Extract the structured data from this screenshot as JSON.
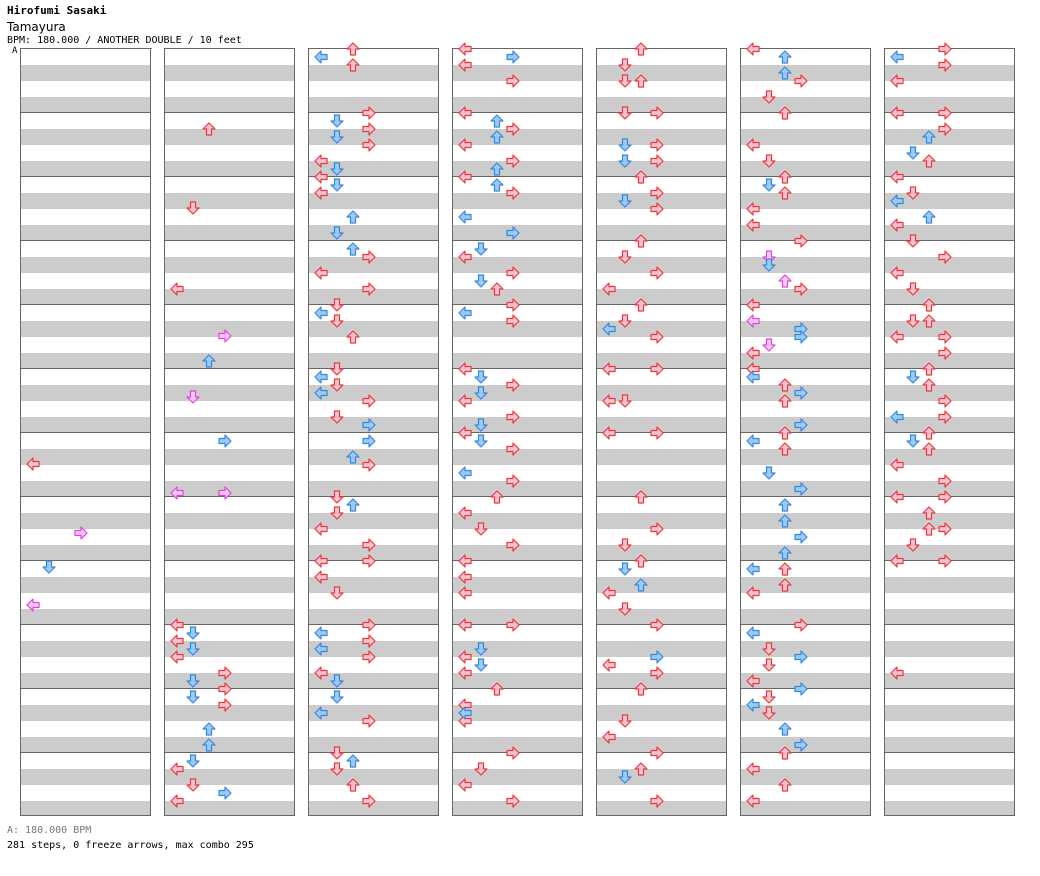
{
  "header": {
    "artist": "Hirofumi Sasaki",
    "song": "Tamayura",
    "meta": "BPM: 180.000 / ANOTHER DOUBLE / 10 feet",
    "bpm_marker": "A"
  },
  "footer": {
    "bpm_legend": "A: 180.000 BPM",
    "stats": "281 steps, 0 freeze arrows, max combo 295"
  },
  "colors": {
    "red": "#ee3344",
    "red_fill": "#ffc8cc",
    "blue": "#3388dd",
    "blue_fill": "#9ec9f5",
    "pink": "#dd44dd",
    "pink_fill": "#ffc8ff"
  },
  "chart": {
    "columns": 7,
    "measures_per_column": 12,
    "notes": [
      [
        1,
        464,
        "l",
        "r"
      ],
      [
        1,
        567,
        "d",
        "b"
      ],
      [
        1,
        605,
        "l",
        "p"
      ],
      [
        1,
        533,
        "r",
        "p"
      ],
      [
        2,
        129,
        "u",
        "r"
      ],
      [
        2,
        208,
        "d",
        "r"
      ],
      [
        2,
        289,
        "l",
        "r"
      ],
      [
        2,
        336,
        "r",
        "p"
      ],
      [
        2,
        361,
        "u",
        "b"
      ],
      [
        2,
        397,
        "d",
        "p"
      ],
      [
        2,
        441,
        "r",
        "b"
      ],
      [
        2,
        493,
        "l",
        "p"
      ],
      [
        2,
        493,
        "r",
        "p"
      ],
      [
        2,
        625,
        "l",
        "r"
      ],
      [
        2,
        641,
        "l",
        "r"
      ],
      [
        2,
        657,
        "l",
        "r"
      ],
      [
        2,
        633,
        "d",
        "b"
      ],
      [
        2,
        649,
        "d",
        "b"
      ],
      [
        2,
        673,
        "r",
        "r"
      ],
      [
        2,
        689,
        "r",
        "r"
      ],
      [
        2,
        705,
        "r",
        "r"
      ],
      [
        2,
        681,
        "d",
        "b"
      ],
      [
        2,
        697,
        "d",
        "b"
      ],
      [
        2,
        729,
        "u",
        "b"
      ],
      [
        2,
        745,
        "u",
        "b"
      ],
      [
        2,
        761,
        "d",
        "b"
      ],
      [
        2,
        769,
        "l",
        "r"
      ],
      [
        2,
        785,
        "d",
        "r"
      ],
      [
        2,
        793,
        "r",
        "b"
      ],
      [
        2,
        801,
        "l",
        "r"
      ],
      [
        3,
        49,
        "u",
        "r"
      ],
      [
        3,
        65,
        "u",
        "r"
      ],
      [
        3,
        57,
        "l",
        "b"
      ],
      [
        3,
        113,
        "r",
        "r"
      ],
      [
        3,
        129,
        "r",
        "r"
      ],
      [
        3,
        145,
        "r",
        "r"
      ],
      [
        3,
        121,
        "d",
        "b"
      ],
      [
        3,
        137,
        "d",
        "b"
      ],
      [
        3,
        161,
        "l",
        "r"
      ],
      [
        3,
        177,
        "l",
        "r"
      ],
      [
        3,
        193,
        "l",
        "r"
      ],
      [
        3,
        169,
        "d",
        "b"
      ],
      [
        3,
        185,
        "d",
        "b"
      ],
      [
        3,
        217,
        "u",
        "b"
      ],
      [
        3,
        233,
        "d",
        "b"
      ],
      [
        3,
        249,
        "u",
        "b"
      ],
      [
        3,
        257,
        "r",
        "r"
      ],
      [
        3,
        273,
        "l",
        "r"
      ],
      [
        3,
        289,
        "r",
        "r"
      ],
      [
        3,
        313,
        "l",
        "b"
      ],
      [
        3,
        305,
        "d",
        "r"
      ],
      [
        3,
        321,
        "d",
        "r"
      ],
      [
        3,
        337,
        "u",
        "r"
      ],
      [
        3,
        369,
        "d",
        "r"
      ],
      [
        3,
        377,
        "l",
        "b"
      ],
      [
        3,
        393,
        "l",
        "b"
      ],
      [
        3,
        385,
        "d",
        "r"
      ],
      [
        3,
        401,
        "r",
        "r"
      ],
      [
        3,
        417,
        "d",
        "r"
      ],
      [
        3,
        425,
        "r",
        "b"
      ],
      [
        3,
        441,
        "r",
        "b"
      ],
      [
        3,
        457,
        "u",
        "b"
      ],
      [
        3,
        465,
        "r",
        "r"
      ],
      [
        3,
        497,
        "d",
        "r"
      ],
      [
        3,
        513,
        "d",
        "r"
      ],
      [
        3,
        505,
        "u",
        "b"
      ],
      [
        3,
        529,
        "l",
        "r"
      ],
      [
        3,
        545,
        "r",
        "r"
      ],
      [
        3,
        561,
        "r",
        "r"
      ],
      [
        3,
        577,
        "l",
        "r"
      ],
      [
        3,
        561,
        "l",
        "r"
      ],
      [
        3,
        593,
        "d",
        "r"
      ],
      [
        3,
        625,
        "r",
        "r"
      ],
      [
        3,
        641,
        "r",
        "r"
      ],
      [
        3,
        657,
        "r",
        "r"
      ],
      [
        3,
        633,
        "l",
        "b"
      ],
      [
        3,
        649,
        "l",
        "b"
      ],
      [
        3,
        673,
        "l",
        "r"
      ],
      [
        3,
        681,
        "d",
        "b"
      ],
      [
        3,
        697,
        "d",
        "b"
      ],
      [
        3,
        713,
        "l",
        "b"
      ],
      [
        3,
        721,
        "r",
        "r"
      ],
      [
        3,
        753,
        "d",
        "r"
      ],
      [
        3,
        769,
        "d",
        "r"
      ],
      [
        3,
        761,
        "u",
        "b"
      ],
      [
        3,
        785,
        "u",
        "r"
      ],
      [
        3,
        801,
        "r",
        "r"
      ],
      [
        4,
        49,
        "l",
        "r"
      ],
      [
        4,
        65,
        "l",
        "r"
      ],
      [
        4,
        57,
        "r",
        "b"
      ],
      [
        4,
        81,
        "r",
        "r"
      ],
      [
        4,
        113,
        "l",
        "r"
      ],
      [
        4,
        121,
        "u",
        "b"
      ],
      [
        4,
        137,
        "u",
        "b"
      ],
      [
        4,
        129,
        "r",
        "r"
      ],
      [
        4,
        145,
        "l",
        "r"
      ],
      [
        4,
        161,
        "r",
        "r"
      ],
      [
        4,
        169,
        "u",
        "b"
      ],
      [
        4,
        185,
        "u",
        "b"
      ],
      [
        4,
        177,
        "l",
        "r"
      ],
      [
        4,
        193,
        "r",
        "r"
      ],
      [
        4,
        217,
        "l",
        "b"
      ],
      [
        4,
        233,
        "r",
        "b"
      ],
      [
        4,
        249,
        "d",
        "b"
      ],
      [
        4,
        257,
        "l",
        "r"
      ],
      [
        4,
        273,
        "r",
        "r"
      ],
      [
        4,
        281,
        "d",
        "b"
      ],
      [
        4,
        289,
        "u",
        "r"
      ],
      [
        4,
        305,
        "r",
        "r"
      ],
      [
        4,
        321,
        "r",
        "r"
      ],
      [
        4,
        313,
        "l",
        "b"
      ],
      [
        4,
        369,
        "l",
        "r"
      ],
      [
        4,
        377,
        "d",
        "b"
      ],
      [
        4,
        393,
        "d",
        "b"
      ],
      [
        4,
        385,
        "r",
        "r"
      ],
      [
        4,
        401,
        "l",
        "r"
      ],
      [
        4,
        417,
        "r",
        "r"
      ],
      [
        4,
        425,
        "d",
        "b"
      ],
      [
        4,
        441,
        "d",
        "b"
      ],
      [
        4,
        433,
        "l",
        "r"
      ],
      [
        4,
        449,
        "r",
        "r"
      ],
      [
        4,
        473,
        "l",
        "b"
      ],
      [
        4,
        481,
        "r",
        "r"
      ],
      [
        4,
        497,
        "u",
        "r"
      ],
      [
        4,
        513,
        "l",
        "r"
      ],
      [
        4,
        529,
        "d",
        "r"
      ],
      [
        4,
        545,
        "r",
        "r"
      ],
      [
        4,
        561,
        "l",
        "r"
      ],
      [
        4,
        577,
        "l",
        "r"
      ],
      [
        4,
        593,
        "l",
        "r"
      ],
      [
        4,
        625,
        "r",
        "r"
      ],
      [
        4,
        625,
        "l",
        "r"
      ],
      [
        4,
        649,
        "d",
        "b"
      ],
      [
        4,
        665,
        "d",
        "b"
      ],
      [
        4,
        657,
        "l",
        "r"
      ],
      [
        4,
        673,
        "l",
        "r"
      ],
      [
        4,
        689,
        "u",
        "r"
      ],
      [
        4,
        705,
        "l",
        "r"
      ],
      [
        4,
        721,
        "l",
        "r"
      ],
      [
        4,
        713,
        "l",
        "b"
      ],
      [
        4,
        753,
        "r",
        "r"
      ],
      [
        4,
        769,
        "d",
        "r"
      ],
      [
        4,
        785,
        "l",
        "r"
      ],
      [
        4,
        801,
        "r",
        "r"
      ],
      [
        5,
        49,
        "u",
        "r"
      ],
      [
        5,
        65,
        "d",
        "r"
      ],
      [
        5,
        81,
        "d",
        "r"
      ],
      [
        5,
        81,
        "u",
        "r"
      ],
      [
        5,
        113,
        "d",
        "r"
      ],
      [
        5,
        113,
        "r",
        "r"
      ],
      [
        5,
        145,
        "d",
        "b"
      ],
      [
        5,
        161,
        "d",
        "b"
      ],
      [
        5,
        145,
        "r",
        "r"
      ],
      [
        5,
        161,
        "r",
        "r"
      ],
      [
        5,
        177,
        "u",
        "r"
      ],
      [
        5,
        193,
        "r",
        "r"
      ],
      [
        5,
        201,
        "d",
        "b"
      ],
      [
        5,
        209,
        "r",
        "r"
      ],
      [
        5,
        241,
        "u",
        "r"
      ],
      [
        5,
        257,
        "d",
        "r"
      ],
      [
        5,
        273,
        "r",
        "r"
      ],
      [
        5,
        289,
        "l",
        "r"
      ],
      [
        5,
        305,
        "u",
        "r"
      ],
      [
        5,
        321,
        "d",
        "r"
      ],
      [
        5,
        329,
        "l",
        "b"
      ],
      [
        5,
        337,
        "r",
        "r"
      ],
      [
        5,
        369,
        "l",
        "r"
      ],
      [
        5,
        369,
        "r",
        "r"
      ],
      [
        5,
        401,
        "l",
        "r"
      ],
      [
        5,
        401,
        "d",
        "r"
      ],
      [
        5,
        433,
        "l",
        "r"
      ],
      [
        5,
        433,
        "r",
        "r"
      ],
      [
        5,
        497,
        "u",
        "r"
      ],
      [
        5,
        529,
        "r",
        "r"
      ],
      [
        5,
        545,
        "d",
        "r"
      ],
      [
        5,
        561,
        "u",
        "r"
      ],
      [
        5,
        569,
        "d",
        "b"
      ],
      [
        5,
        585,
        "u",
        "b"
      ],
      [
        5,
        593,
        "l",
        "r"
      ],
      [
        5,
        609,
        "d",
        "r"
      ],
      [
        5,
        625,
        "r",
        "r"
      ],
      [
        5,
        657,
        "r",
        "b"
      ],
      [
        5,
        665,
        "l",
        "r"
      ],
      [
        5,
        673,
        "r",
        "r"
      ],
      [
        5,
        689,
        "u",
        "r"
      ],
      [
        5,
        721,
        "d",
        "r"
      ],
      [
        5,
        737,
        "l",
        "r"
      ],
      [
        5,
        753,
        "r",
        "r"
      ],
      [
        5,
        769,
        "u",
        "r"
      ],
      [
        5,
        777,
        "d",
        "b"
      ],
      [
        5,
        801,
        "r",
        "r"
      ],
      [
        6,
        49,
        "l",
        "r"
      ],
      [
        6,
        57,
        "u",
        "b"
      ],
      [
        6,
        73,
        "u",
        "b"
      ],
      [
        6,
        81,
        "r",
        "r"
      ],
      [
        6,
        97,
        "d",
        "r"
      ],
      [
        6,
        113,
        "u",
        "r"
      ],
      [
        6,
        145,
        "l",
        "r"
      ],
      [
        6,
        161,
        "d",
        "r"
      ],
      [
        6,
        177,
        "u",
        "r"
      ],
      [
        6,
        193,
        "u",
        "r"
      ],
      [
        6,
        185,
        "d",
        "b"
      ],
      [
        6,
        209,
        "l",
        "r"
      ],
      [
        6,
        225,
        "l",
        "r"
      ],
      [
        6,
        241,
        "r",
        "r"
      ],
      [
        6,
        257,
        "d",
        "p"
      ],
      [
        6,
        265,
        "d",
        "b"
      ],
      [
        6,
        281,
        "u",
        "p"
      ],
      [
        6,
        289,
        "r",
        "r"
      ],
      [
        6,
        305,
        "l",
        "r"
      ],
      [
        6,
        321,
        "l",
        "p"
      ],
      [
        6,
        329,
        "r",
        "b"
      ],
      [
        6,
        337,
        "r",
        "b"
      ],
      [
        6,
        345,
        "d",
        "p"
      ],
      [
        6,
        353,
        "l",
        "r"
      ],
      [
        6,
        369,
        "l",
        "r"
      ],
      [
        6,
        377,
        "l",
        "b"
      ],
      [
        6,
        385,
        "u",
        "r"
      ],
      [
        6,
        401,
        "u",
        "r"
      ],
      [
        6,
        393,
        "r",
        "b"
      ],
      [
        6,
        425,
        "r",
        "b"
      ],
      [
        6,
        441,
        "l",
        "b"
      ],
      [
        6,
        433,
        "u",
        "r"
      ],
      [
        6,
        449,
        "u",
        "r"
      ],
      [
        6,
        473,
        "d",
        "b"
      ],
      [
        6,
        489,
        "r",
        "b"
      ],
      [
        6,
        505,
        "u",
        "b"
      ],
      [
        6,
        521,
        "u",
        "b"
      ],
      [
        6,
        537,
        "r",
        "b"
      ],
      [
        6,
        553,
        "u",
        "b"
      ],
      [
        6,
        569,
        "l",
        "b"
      ],
      [
        6,
        569,
        "u",
        "r"
      ],
      [
        6,
        585,
        "u",
        "r"
      ],
      [
        6,
        593,
        "l",
        "r"
      ],
      [
        6,
        625,
        "r",
        "r"
      ],
      [
        6,
        633,
        "l",
        "b"
      ],
      [
        6,
        649,
        "d",
        "r"
      ],
      [
        6,
        657,
        "r",
        "b"
      ],
      [
        6,
        665,
        "d",
        "r"
      ],
      [
        6,
        681,
        "l",
        "r"
      ],
      [
        6,
        689,
        "r",
        "b"
      ],
      [
        6,
        697,
        "d",
        "r"
      ],
      [
        6,
        705,
        "l",
        "b"
      ],
      [
        6,
        713,
        "d",
        "r"
      ],
      [
        6,
        729,
        "u",
        "b"
      ],
      [
        6,
        745,
        "r",
        "b"
      ],
      [
        6,
        753,
        "u",
        "r"
      ],
      [
        6,
        769,
        "l",
        "r"
      ],
      [
        6,
        785,
        "u",
        "r"
      ],
      [
        6,
        801,
        "l",
        "r"
      ],
      [
        7,
        49,
        "r",
        "r"
      ],
      [
        7,
        65,
        "r",
        "r"
      ],
      [
        7,
        57,
        "l",
        "b"
      ],
      [
        7,
        81,
        "l",
        "r"
      ],
      [
        7,
        113,
        "r",
        "r"
      ],
      [
        7,
        113,
        "l",
        "r"
      ],
      [
        7,
        129,
        "r",
        "r"
      ],
      [
        7,
        137,
        "u",
        "b"
      ],
      [
        7,
        153,
        "d",
        "b"
      ],
      [
        7,
        161,
        "u",
        "r"
      ],
      [
        7,
        177,
        "l",
        "r"
      ],
      [
        7,
        193,
        "d",
        "r"
      ],
      [
        7,
        201,
        "l",
        "b"
      ],
      [
        7,
        217,
        "u",
        "b"
      ],
      [
        7,
        225,
        "l",
        "r"
      ],
      [
        7,
        241,
        "d",
        "r"
      ],
      [
        7,
        257,
        "r",
        "r"
      ],
      [
        7,
        273,
        "l",
        "r"
      ],
      [
        7,
        289,
        "d",
        "r"
      ],
      [
        7,
        305,
        "u",
        "r"
      ],
      [
        7,
        321,
        "d",
        "r"
      ],
      [
        7,
        321,
        "u",
        "r"
      ],
      [
        7,
        337,
        "l",
        "r"
      ],
      [
        7,
        337,
        "r",
        "r"
      ],
      [
        7,
        353,
        "r",
        "r"
      ],
      [
        7,
        369,
        "u",
        "r"
      ],
      [
        7,
        377,
        "d",
        "b"
      ],
      [
        7,
        385,
        "u",
        "r"
      ],
      [
        7,
        401,
        "r",
        "r"
      ],
      [
        7,
        417,
        "l",
        "b"
      ],
      [
        7,
        417,
        "r",
        "r"
      ],
      [
        7,
        433,
        "u",
        "r"
      ],
      [
        7,
        441,
        "d",
        "b"
      ],
      [
        7,
        449,
        "u",
        "r"
      ],
      [
        7,
        465,
        "l",
        "r"
      ],
      [
        7,
        481,
        "r",
        "r"
      ],
      [
        7,
        497,
        "r",
        "r"
      ],
      [
        7,
        497,
        "l",
        "r"
      ],
      [
        7,
        513,
        "u",
        "r"
      ],
      [
        7,
        529,
        "u",
        "r"
      ],
      [
        7,
        529,
        "r",
        "r"
      ],
      [
        7,
        545,
        "d",
        "r"
      ],
      [
        7,
        561,
        "l",
        "r"
      ],
      [
        7,
        561,
        "r",
        "r"
      ],
      [
        7,
        673,
        "l",
        "r"
      ]
    ]
  }
}
